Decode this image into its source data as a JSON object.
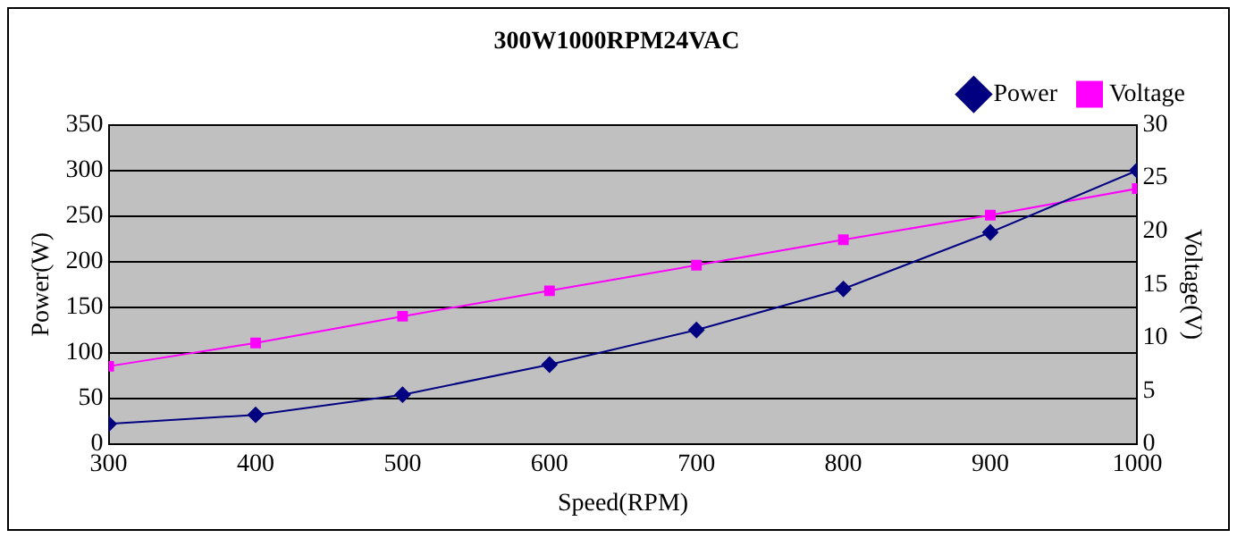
{
  "chart_data": {
    "type": "line",
    "title": "300W1000RPM24VAC",
    "xlabel": "Speed(RPM)",
    "ylabel": "Power(W)",
    "y2label": "Voltage(V)",
    "x": [
      300,
      400,
      500,
      600,
      700,
      800,
      900,
      1000
    ],
    "series": [
      {
        "name": "Power",
        "color": "#000080",
        "marker": "diamond",
        "values": [
          22,
          32,
          54,
          87,
          125,
          170,
          232,
          300
        ]
      },
      {
        "name": "Voltage",
        "color": "#ff00ff",
        "marker": "square",
        "axis": "y2",
        "values": [
          7.3,
          9.5,
          12,
          14.4,
          16.8,
          19.2,
          21.5,
          24
        ]
      }
    ],
    "xlim": [
      300,
      1000
    ],
    "xticks": [
      300,
      400,
      500,
      600,
      700,
      800,
      900,
      1000
    ],
    "ylim": [
      0,
      350
    ],
    "yticks": [
      0,
      50,
      100,
      150,
      200,
      250,
      300,
      350
    ],
    "y2lim": [
      0,
      30
    ],
    "y2ticks": [
      0,
      5,
      10,
      15,
      20,
      25,
      30
    ],
    "grid": "y",
    "legend": "top right",
    "line_style": "solid"
  }
}
